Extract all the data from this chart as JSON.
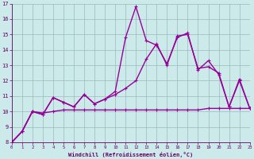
{
  "xlabel": "Windchill (Refroidissement éolien,°C)",
  "x_values": [
    0,
    1,
    2,
    3,
    4,
    5,
    6,
    7,
    8,
    9,
    10,
    11,
    12,
    13,
    14,
    15,
    16,
    17,
    18,
    19,
    20,
    21,
    22,
    23
  ],
  "line_spiky": [
    8.0,
    8.7,
    10.0,
    9.8,
    10.9,
    10.6,
    10.3,
    11.1,
    10.5,
    10.8,
    11.3,
    14.8,
    16.8,
    14.6,
    14.3,
    13.1,
    14.8,
    15.1,
    12.7,
    13.3,
    12.4,
    10.3,
    12.1,
    10.2
  ],
  "line_smooth": [
    8.0,
    8.7,
    10.0,
    9.8,
    10.9,
    10.6,
    10.3,
    11.1,
    10.5,
    10.8,
    11.1,
    11.5,
    12.0,
    13.4,
    14.4,
    13.0,
    14.9,
    15.0,
    12.8,
    12.9,
    12.5,
    10.3,
    12.0,
    10.2
  ],
  "line_flat": [
    8.0,
    8.7,
    10.0,
    9.9,
    10.0,
    10.1,
    10.1,
    10.1,
    10.1,
    10.1,
    10.1,
    10.1,
    10.1,
    10.1,
    10.1,
    10.1,
    10.1,
    10.1,
    10.1,
    10.2,
    10.2,
    10.2,
    10.2,
    10.2
  ],
  "ylim": [
    8,
    17
  ],
  "xlim": [
    0,
    23
  ],
  "bg_color": "#cceaea",
  "line_color": "#990099",
  "grid_color": "#99bbbb",
  "tick_label_color": "#660066",
  "xlabel_color": "#660066",
  "markersize": 3.5,
  "linewidth": 1.0
}
